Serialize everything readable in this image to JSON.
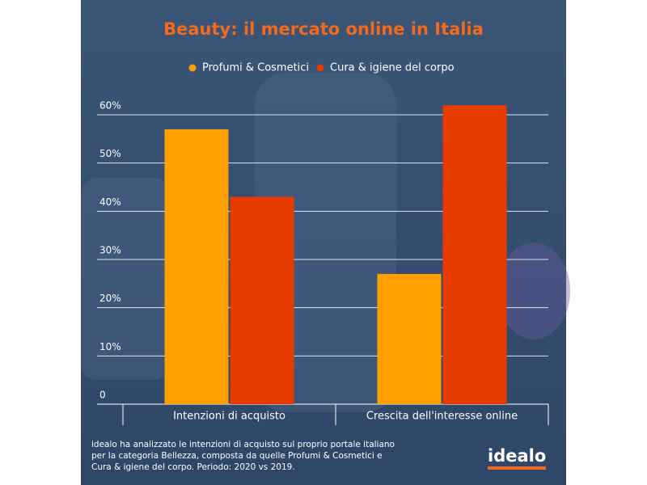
{
  "chart_data": {
    "type": "bar",
    "title": "Beauty: il mercato online in Italia",
    "categories": [
      "Intenzioni di acquisto",
      "Crescita dell'interesse online"
    ],
    "series": [
      {
        "name": "Profumi & Cosmetici",
        "color": "#ffa000",
        "values": [
          57,
          27
        ]
      },
      {
        "name": "Cura & igiene del corpo",
        "color": "#e63c00",
        "values": [
          43,
          62
        ]
      }
    ],
    "ylim": [
      0,
      60
    ],
    "yticks": [
      0,
      {
        "value": 10,
        "label": "10%"
      },
      {
        "value": 20,
        "label": "20%"
      },
      {
        "value": 30,
        "label": "30%"
      },
      {
        "value": 40,
        "label": "40%"
      },
      {
        "value": 50,
        "label": "50%"
      },
      {
        "value": 60,
        "label": "60%"
      }
    ],
    "grid": true,
    "legend": "top",
    "footnote": [
      "idealo ha analizzato le intenzioni di acquisto sul proprio portale italiano",
      "per la categoria Bellezza, composta da quelle Profumi & Cosmetici e",
      "Cura & igiene del corpo. Periodo: 2020 vs 2019."
    ],
    "logo": "idealo"
  }
}
